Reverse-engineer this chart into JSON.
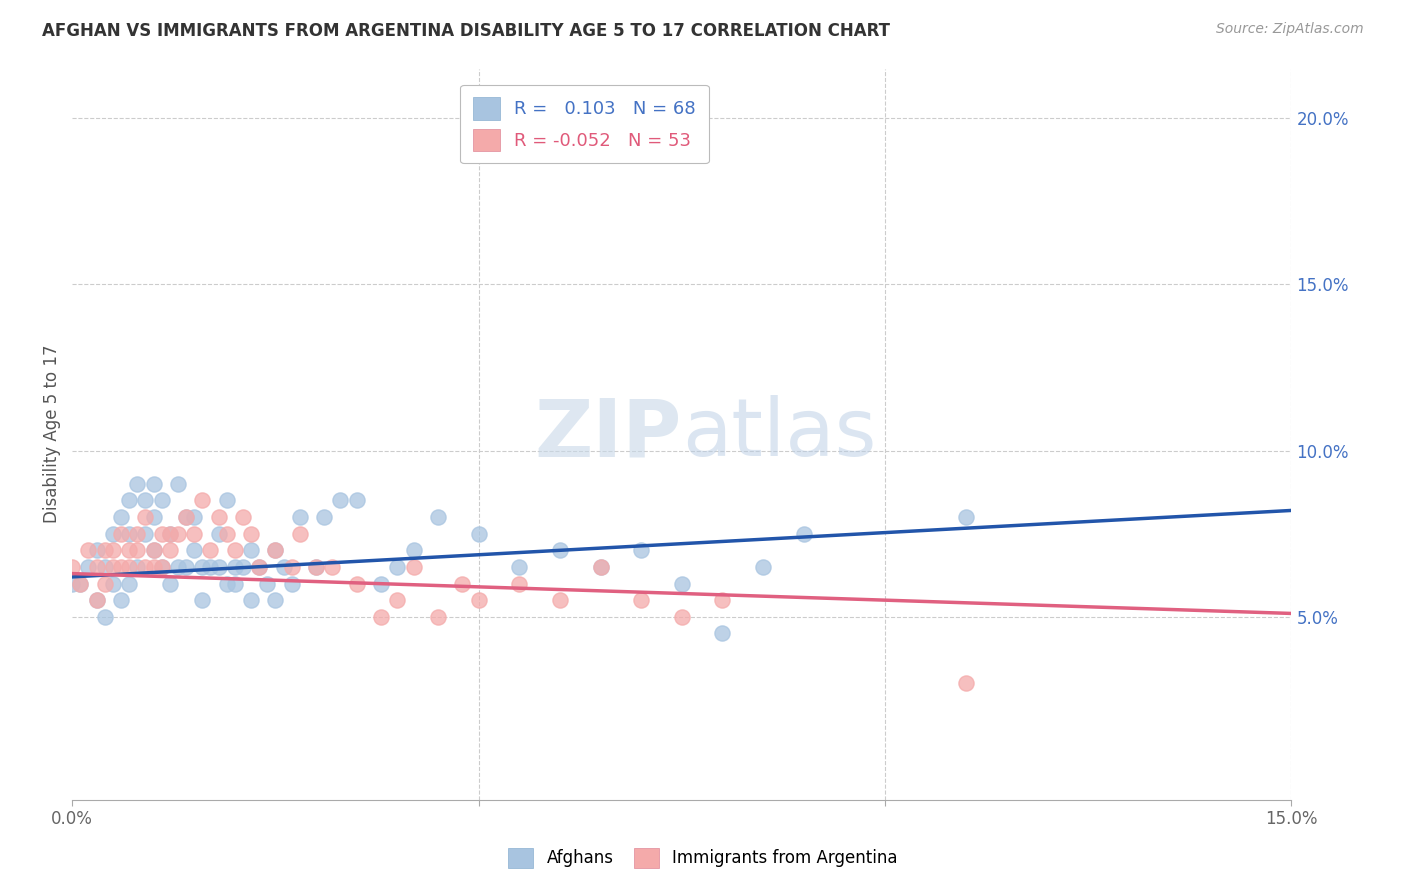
{
  "title": "AFGHAN VS IMMIGRANTS FROM ARGENTINA DISABILITY AGE 5 TO 17 CORRELATION CHART",
  "source": "Source: ZipAtlas.com",
  "ylabel": "Disability Age 5 to 17",
  "xlim": [
    0.0,
    0.15
  ],
  "ylim": [
    -0.005,
    0.215
  ],
  "afghan_color": "#a8c4e0",
  "argentina_color": "#f4aaaa",
  "afghan_line_color": "#2255aa",
  "argentina_line_color": "#e06080",
  "r_afghan": 0.103,
  "n_afghan": 68,
  "r_argentina": -0.052,
  "n_argentina": 53,
  "afghans_scatter_x": [
    0.0,
    0.001,
    0.002,
    0.003,
    0.003,
    0.004,
    0.004,
    0.005,
    0.005,
    0.006,
    0.006,
    0.007,
    0.007,
    0.007,
    0.008,
    0.008,
    0.009,
    0.009,
    0.01,
    0.01,
    0.01,
    0.011,
    0.011,
    0.012,
    0.012,
    0.013,
    0.013,
    0.014,
    0.014,
    0.015,
    0.015,
    0.016,
    0.016,
    0.017,
    0.018,
    0.018,
    0.019,
    0.019,
    0.02,
    0.02,
    0.021,
    0.022,
    0.022,
    0.023,
    0.024,
    0.025,
    0.025,
    0.026,
    0.027,
    0.028,
    0.03,
    0.031,
    0.033,
    0.035,
    0.038,
    0.04,
    0.042,
    0.045,
    0.05,
    0.055,
    0.06,
    0.065,
    0.07,
    0.075,
    0.08,
    0.085,
    0.09,
    0.11
  ],
  "afghans_scatter_y": [
    0.06,
    0.06,
    0.065,
    0.055,
    0.07,
    0.05,
    0.065,
    0.06,
    0.075,
    0.055,
    0.08,
    0.075,
    0.085,
    0.06,
    0.09,
    0.065,
    0.085,
    0.075,
    0.07,
    0.08,
    0.09,
    0.065,
    0.085,
    0.075,
    0.06,
    0.065,
    0.09,
    0.08,
    0.065,
    0.07,
    0.08,
    0.055,
    0.065,
    0.065,
    0.065,
    0.075,
    0.06,
    0.085,
    0.06,
    0.065,
    0.065,
    0.055,
    0.07,
    0.065,
    0.06,
    0.07,
    0.055,
    0.065,
    0.06,
    0.08,
    0.065,
    0.08,
    0.085,
    0.085,
    0.06,
    0.065,
    0.07,
    0.08,
    0.075,
    0.065,
    0.07,
    0.065,
    0.07,
    0.06,
    0.045,
    0.065,
    0.075,
    0.08
  ],
  "argentina_scatter_x": [
    0.0,
    0.001,
    0.002,
    0.003,
    0.003,
    0.004,
    0.004,
    0.005,
    0.005,
    0.006,
    0.006,
    0.007,
    0.007,
    0.008,
    0.008,
    0.009,
    0.009,
    0.01,
    0.01,
    0.011,
    0.011,
    0.012,
    0.012,
    0.013,
    0.014,
    0.015,
    0.016,
    0.017,
    0.018,
    0.019,
    0.02,
    0.021,
    0.022,
    0.023,
    0.025,
    0.027,
    0.028,
    0.03,
    0.032,
    0.035,
    0.038,
    0.04,
    0.042,
    0.045,
    0.048,
    0.05,
    0.055,
    0.06,
    0.065,
    0.07,
    0.075,
    0.08,
    0.11
  ],
  "argentina_scatter_y": [
    0.065,
    0.06,
    0.07,
    0.065,
    0.055,
    0.06,
    0.07,
    0.065,
    0.07,
    0.065,
    0.075,
    0.07,
    0.065,
    0.07,
    0.075,
    0.065,
    0.08,
    0.065,
    0.07,
    0.075,
    0.065,
    0.07,
    0.075,
    0.075,
    0.08,
    0.075,
    0.085,
    0.07,
    0.08,
    0.075,
    0.07,
    0.08,
    0.075,
    0.065,
    0.07,
    0.065,
    0.075,
    0.065,
    0.065,
    0.06,
    0.05,
    0.055,
    0.065,
    0.05,
    0.06,
    0.055,
    0.06,
    0.055,
    0.065,
    0.055,
    0.05,
    0.055,
    0.03
  ],
  "afghan_line_x0": 0.0,
  "afghan_line_y0": 0.062,
  "afghan_line_x1": 0.15,
  "afghan_line_y1": 0.082,
  "arg_line_x0": 0.0,
  "arg_line_y0": 0.063,
  "arg_line_x1": 0.15,
  "arg_line_y1": 0.051
}
